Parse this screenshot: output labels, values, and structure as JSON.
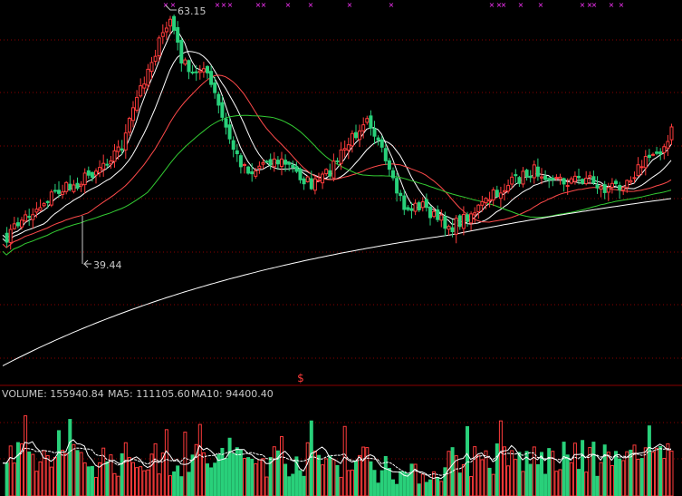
{
  "colors": {
    "background": "#000000",
    "up_candle": "#ff3b3b",
    "down_candle": "#29d07a",
    "ma_short": "#ffffff",
    "ma_mid": "#ffffff",
    "ma_long_red": "#ff4a4a",
    "ma_long_green": "#33cc33",
    "ma_longest": "#ffffff",
    "signal_marks": "#ff33ff",
    "grid": "#8a0000",
    "volume_ma5": "#ffffff",
    "volume_ma10": "#ffffff",
    "label_text": "#c8c8c8"
  },
  "price_annotations": {
    "high_label": "63.15",
    "low_label": "39.44"
  },
  "volume_header": {
    "volume_text": "VOLUME: 155940.84",
    "ma5_text": "MA5: 111105.60",
    "ma10_text": "MA10: 94400.40"
  },
  "center_marker": "$",
  "chart_data": [
    {
      "type": "candlestick",
      "panel": "price",
      "title": "",
      "y_high": 63.15,
      "y_low": 39.44,
      "moving_averages": [
        "short",
        "medium",
        "long (red)",
        "long (green)",
        "longest (white)"
      ],
      "signal_marks": "pink x markers along top edge",
      "grid": "dotted horizontal"
    },
    {
      "type": "bar",
      "panel": "volume",
      "title": "",
      "last_volume": 155940.84,
      "ma5": 111105.6,
      "ma10": 94400.4
    }
  ]
}
